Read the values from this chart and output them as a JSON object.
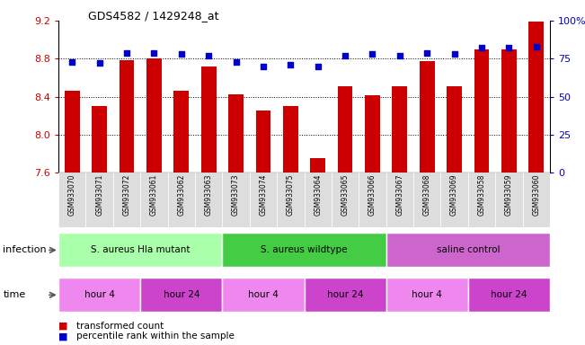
{
  "title": "GDS4582 / 1429248_at",
  "samples": [
    "GSM933070",
    "GSM933071",
    "GSM933072",
    "GSM933061",
    "GSM933062",
    "GSM933063",
    "GSM933073",
    "GSM933074",
    "GSM933075",
    "GSM933064",
    "GSM933065",
    "GSM933066",
    "GSM933067",
    "GSM933068",
    "GSM933069",
    "GSM933058",
    "GSM933059",
    "GSM933060"
  ],
  "bar_values": [
    8.46,
    8.3,
    8.78,
    8.8,
    8.46,
    8.72,
    8.42,
    8.25,
    8.3,
    7.75,
    8.51,
    8.41,
    8.51,
    8.77,
    8.51,
    8.9,
    8.9,
    9.19
  ],
  "percentile_values": [
    73,
    72,
    79,
    79,
    78,
    77,
    73,
    70,
    71,
    70,
    77,
    78,
    77,
    79,
    78,
    82,
    82,
    83
  ],
  "bar_color": "#cc0000",
  "percentile_color": "#0000cc",
  "ylim_left": [
    7.6,
    9.2
  ],
  "ylim_right": [
    0,
    100
  ],
  "yticks_left": [
    7.6,
    8.0,
    8.4,
    8.8,
    9.2
  ],
  "yticks_right": [
    0,
    25,
    50,
    75,
    100
  ],
  "ytick_labels_right": [
    "0",
    "25",
    "50",
    "75",
    "100%"
  ],
  "hlines": [
    8.0,
    8.4,
    8.8
  ],
  "infection_groups": [
    {
      "label": "S. aureus Hla mutant",
      "start": 0,
      "end": 5,
      "color": "#aaffaa"
    },
    {
      "label": "S. aureus wildtype",
      "start": 6,
      "end": 11,
      "color": "#44cc44"
    },
    {
      "label": "saline control",
      "start": 12,
      "end": 17,
      "color": "#cc66cc"
    }
  ],
  "time_groups": [
    {
      "label": "hour 4",
      "start": 0,
      "end": 2,
      "color": "#ee88ee"
    },
    {
      "label": "hour 24",
      "start": 3,
      "end": 5,
      "color": "#cc44cc"
    },
    {
      "label": "hour 4",
      "start": 6,
      "end": 8,
      "color": "#ee88ee"
    },
    {
      "label": "hour 24",
      "start": 9,
      "end": 11,
      "color": "#cc44cc"
    },
    {
      "label": "hour 4",
      "start": 12,
      "end": 14,
      "color": "#ee88ee"
    },
    {
      "label": "hour 24",
      "start": 15,
      "end": 17,
      "color": "#cc44cc"
    }
  ],
  "infection_label": "infection",
  "time_label": "time",
  "legend_bar_label": "transformed count",
  "legend_pct_label": "percentile rank within the sample",
  "bg_color": "#ffffff",
  "plot_bg_color": "#ffffff",
  "tick_label_color_left": "#cc0000",
  "tick_label_color_right": "#0000cc",
  "grid_color": "#000000",
  "bar_width": 0.55,
  "xlabel_bg": "#cccccc",
  "xlabel_border": "#999999"
}
